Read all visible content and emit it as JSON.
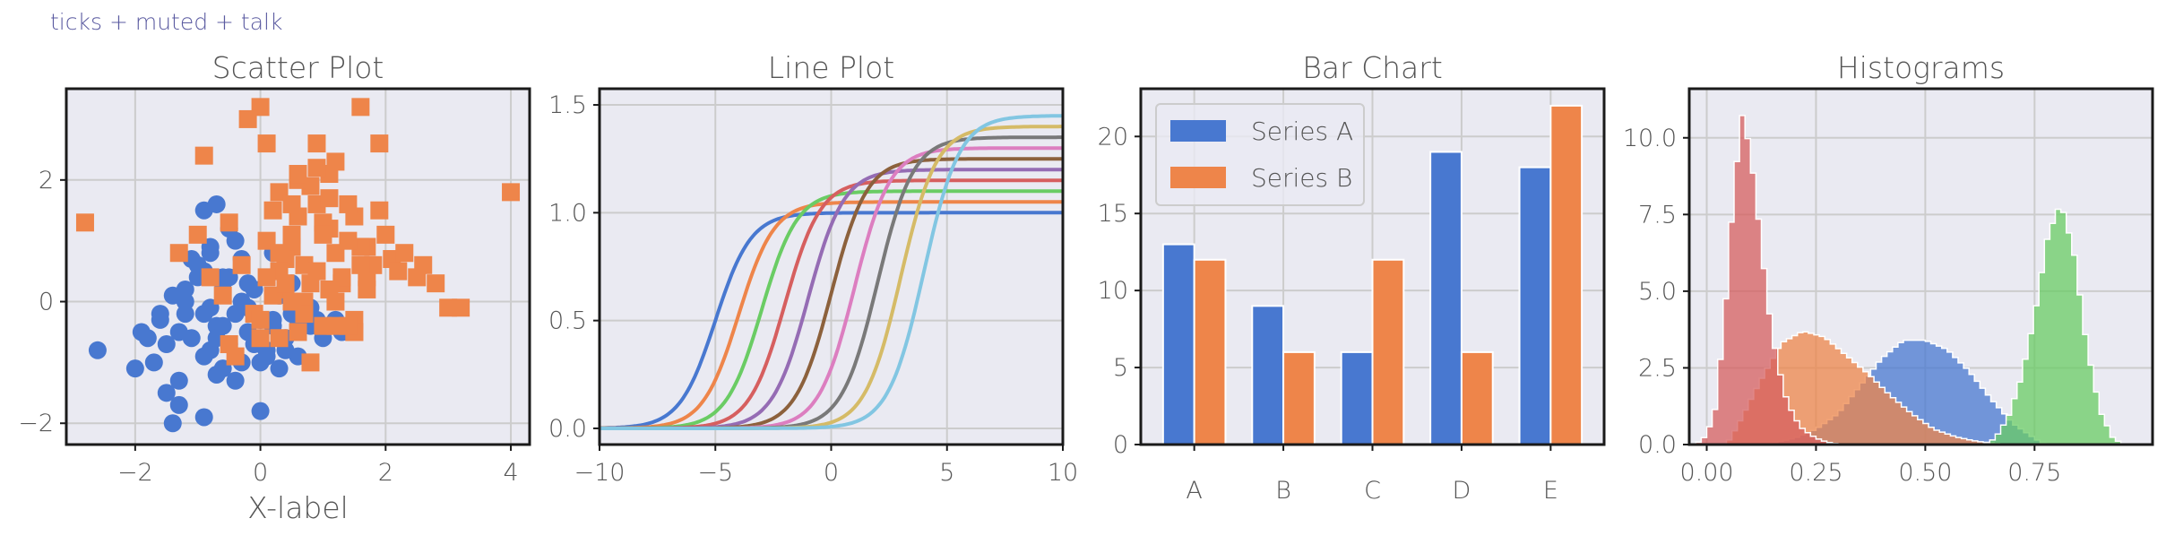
{
  "figure_title": "ticks + muted + talk",
  "colors": {
    "axes_bg": "#eaeaf2",
    "grid": "#cccccc",
    "spine": "#1a1a1a",
    "text": "#555555",
    "muted": [
      "#4878d0",
      "#ee854a",
      "#6acc64",
      "#d65f5f",
      "#956cb4",
      "#8c613c",
      "#dc7ec0",
      "#797979",
      "#d5bb67",
      "#82c6e2"
    ]
  },
  "chart_data": [
    {
      "type": "scatter",
      "title": "Scatter Plot",
      "xlabel": "X-label",
      "ylabel": "",
      "xlim": [
        -3.1,
        4.3
      ],
      "ylim": [
        -2.35,
        3.5
      ],
      "xticks": [
        -2,
        0,
        2,
        4
      ],
      "xtick_labels": [
        "−2",
        "0",
        "2",
        "4"
      ],
      "yticks": [
        -2,
        0,
        2
      ],
      "ytick_labels": [
        "−2",
        "0",
        "2"
      ],
      "grid": true,
      "series": [
        {
          "marker": "circle",
          "color": "#4878d0",
          "x": [
            -2.6,
            -2.0,
            -1.9,
            -1.6,
            -1.5,
            -1.4,
            -1.3,
            -1.2,
            -1.1,
            -1.0,
            -0.9,
            -0.8,
            -0.7,
            -0.6,
            -0.5,
            -0.4,
            -0.3,
            -0.2,
            -0.1,
            0.0,
            0.1,
            0.2,
            0.3,
            0.4,
            0.5,
            0.6,
            0.7,
            0.8,
            1.0,
            1.2,
            1.4,
            -1.8,
            -1.5,
            -1.2,
            -0.9,
            -0.6,
            -0.3,
            0.0,
            0.3,
            0.6,
            0.9,
            -1.7,
            -1.3,
            -0.8,
            -0.4,
            0.1,
            0.5,
            -1.0,
            -0.7,
            -0.2,
            0.2,
            -1.1,
            -0.5,
            0.4,
            -1.4,
            -0.9,
            0.0,
            -1.3,
            -1.2,
            -0.8,
            -0.3,
            0.2,
            1.3,
            0.8,
            -1.6,
            -0.6,
            -0.1,
            0.7,
            -0.9,
            -0.4,
            -0.9,
            -0.8,
            -0.6,
            0.0,
            -0.7,
            -0.5,
            -0.2,
            -0.7
          ],
          "y": [
            -0.8,
            -1.1,
            -0.5,
            -0.3,
            -0.7,
            0.1,
            -1.3,
            -0.2,
            -0.6,
            0.4,
            -0.9,
            -0.1,
            -0.4,
            0.3,
            -0.7,
            -0.2,
            -1.0,
            -0.5,
            0.2,
            -0.3,
            -0.8,
            -0.4,
            0.1,
            -0.6,
            -0.2,
            -0.9,
            0.0,
            -0.4,
            -0.6,
            -0.3,
            -0.5,
            -0.6,
            -1.5,
            0.2,
            -0.2,
            -1.1,
            0.0,
            -0.7,
            -1.1,
            -0.4,
            -0.3,
            -1.0,
            -0.5,
            -0.8,
            -1.3,
            -0.9,
            0.3,
            0.6,
            -0.6,
            -0.1,
            -0.3,
            0.7,
            0.4,
            -0.8,
            -2.0,
            -1.9,
            -1.8,
            -1.7,
            0.0,
            0.9,
            0.7,
            0.8,
            -0.5,
            -0.1,
            -0.2,
            -0.4,
            -0.7,
            -0.2,
            1.5,
            1.0,
            0.5,
            0.8,
            0.4,
            -1.0,
            1.6,
            1.2,
            0.3,
            -1.2
          ]
        },
        {
          "marker": "square",
          "color": "#ee854a",
          "x": [
            -2.8,
            4.0,
            0.0,
            1.6,
            -1.3,
            -0.9,
            -0.5,
            -0.2,
            0.1,
            0.3,
            0.5,
            0.7,
            0.9,
            1.1,
            1.3,
            1.5,
            1.7,
            1.9,
            2.1,
            2.3,
            2.5,
            2.8,
            3.2,
            1.0,
            0.4,
            -0.1,
            -0.6,
            0.6,
            0.9,
            1.2,
            1.5,
            1.8,
            0.2,
            0.5,
            0.8,
            1.1,
            1.4,
            1.7,
            2.0,
            0.0,
            0.3,
            0.6,
            0.9,
            1.2,
            1.5,
            0.1,
            0.4,
            0.7,
            1.0,
            1.3,
            1.6,
            -0.3,
            0.2,
            0.5,
            0.8,
            1.1,
            1.4,
            1.7,
            0.6,
            0.9,
            1.2,
            2.6,
            3.0,
            1.5,
            0.3,
            0.7,
            1.1,
            1.9,
            -0.8,
            0.0,
            0.4,
            0.8,
            1.2,
            1.6,
            2.2,
            0.5,
            1.0,
            -0.4,
            0.1,
            -1.0,
            0.3,
            0.6,
            1.4,
            -0.5
          ],
          "y": [
            1.3,
            1.8,
            3.2,
            3.2,
            0.8,
            2.4,
            1.3,
            3.0,
            2.6,
            1.8,
            1.1,
            0.6,
            1.6,
            2.1,
            0.3,
            1.4,
            0.9,
            2.6,
            0.7,
            0.8,
            0.4,
            0.3,
            -0.1,
            -0.4,
            0.2,
            -0.2,
            0.1,
            -0.5,
            0.5,
            0.0,
            -0.3,
            0.6,
            1.5,
            0.9,
            1.9,
            1.2,
            1.6,
            0.4,
            1.1,
            -0.6,
            0.5,
            1.4,
            2.2,
            0.8,
            -0.5,
            1.0,
            0.7,
            0.0,
            1.3,
            0.4,
            0.9,
            0.6,
            0.1,
            1.6,
            0.3,
            1.7,
            1.0,
            0.2,
            2.0,
            2.6,
            -0.4,
            0.6,
            -0.1,
            -0.5,
            0.8,
            -0.2,
            0.2,
            1.5,
            0.4,
            -0.3,
            0.3,
            -1.0,
            2.3,
            0.6,
            0.5,
            0.0,
            1.1,
            -0.9,
            0.4,
            1.1,
            -0.6,
            2.1,
            -0.4,
            -0.7
          ]
        }
      ]
    },
    {
      "type": "line",
      "title": "Line Plot",
      "xlabel": "",
      "ylabel": "",
      "xlim": [
        -10,
        10
      ],
      "ylim": [
        -0.075,
        1.575
      ],
      "xticks": [
        -10,
        -5,
        0,
        5,
        10
      ],
      "xtick_labels": [
        "−10",
        "−5",
        "0",
        "5",
        "10"
      ],
      "yticks": [
        0.0,
        0.5,
        1.0,
        1.5
      ],
      "ytick_labels": [
        "0.0",
        "0.5",
        "1.0",
        "1.5"
      ],
      "grid": true,
      "curves": [
        {
          "color": "#4878d0",
          "shift": -5,
          "amplitude": 1.0
        },
        {
          "color": "#ee854a",
          "shift": -4,
          "amplitude": 1.05
        },
        {
          "color": "#6acc64",
          "shift": -3,
          "amplitude": 1.1
        },
        {
          "color": "#d65f5f",
          "shift": -2,
          "amplitude": 1.15
        },
        {
          "color": "#956cb4",
          "shift": -1,
          "amplitude": 1.2
        },
        {
          "color": "#8c613c",
          "shift": 0,
          "amplitude": 1.25
        },
        {
          "color": "#dc7ec0",
          "shift": 1,
          "amplitude": 1.3
        },
        {
          "color": "#797979",
          "shift": 2,
          "amplitude": 1.35
        },
        {
          "color": "#d5bb67",
          "shift": 3,
          "amplitude": 1.4
        },
        {
          "color": "#82c6e2",
          "shift": 4,
          "amplitude": 1.45
        }
      ]
    },
    {
      "type": "bar",
      "title": "Bar Chart",
      "xlabel": "",
      "ylabel": "",
      "categories": [
        "A",
        "B",
        "C",
        "D",
        "E"
      ],
      "ylim": [
        0,
        23.1
      ],
      "yticks": [
        0,
        5,
        10,
        15,
        20
      ],
      "ytick_labels": [
        "0",
        "5",
        "10",
        "15",
        "20"
      ],
      "grid": true,
      "legend": "top-left",
      "series": [
        {
          "name": "Series A",
          "color": "#4878d0",
          "values": [
            13,
            9,
            6,
            19,
            18
          ]
        },
        {
          "name": "Series B",
          "color": "#ee854a",
          "values": [
            12,
            6,
            12,
            6,
            22
          ]
        }
      ]
    },
    {
      "type": "histogram",
      "title": "Histograms",
      "xlabel": "",
      "ylabel": "",
      "xlim": [
        -0.04,
        1.02
      ],
      "ylim": [
        0,
        11.6
      ],
      "xticks": [
        0.0,
        0.25,
        0.5,
        0.75
      ],
      "xtick_labels": [
        "0.00",
        "0.25",
        "0.50",
        "0.75"
      ],
      "yticks": [
        0.0,
        2.5,
        5.0,
        7.5,
        10.0
      ],
      "ytick_labels": [
        "0.0",
        "2.5",
        "5.0",
        "7.5",
        "10.0"
      ],
      "grid": true,
      "series": [
        {
          "color": "#4878d0",
          "x": [
            0.15,
            0.2,
            0.25,
            0.3,
            0.35,
            0.4,
            0.45,
            0.5,
            0.55,
            0.6,
            0.65,
            0.7,
            0.75
          ],
          "density": [
            0.05,
            0.2,
            0.5,
            1.0,
            1.9,
            2.8,
            3.4,
            3.4,
            3.1,
            2.4,
            1.5,
            0.7,
            0.2
          ]
        },
        {
          "color": "#ee854a",
          "x": [
            0.07,
            0.12,
            0.17,
            0.22,
            0.27,
            0.32,
            0.37,
            0.42,
            0.47,
            0.52,
            0.57,
            0.62,
            0.67
          ],
          "density": [
            0.6,
            2.0,
            3.3,
            3.7,
            3.5,
            2.9,
            2.3,
            1.6,
            1.0,
            0.5,
            0.25,
            0.1,
            0.03
          ]
        },
        {
          "color": "#d65f5f",
          "x": [
            0.0,
            0.02,
            0.04,
            0.06,
            0.08,
            0.1,
            0.12,
            0.14,
            0.16,
            0.18,
            0.2,
            0.22,
            0.24,
            0.26,
            0.28,
            0.3
          ],
          "density": [
            0.3,
            1.2,
            4.0,
            8.0,
            10.8,
            9.6,
            7.2,
            4.6,
            2.8,
            1.6,
            0.9,
            0.5,
            0.3,
            0.15,
            0.07,
            0.02
          ]
        },
        {
          "color": "#6acc64",
          "x": [
            0.66,
            0.69,
            0.72,
            0.75,
            0.78,
            0.81,
            0.84,
            0.87,
            0.9,
            0.93
          ],
          "density": [
            0.2,
            0.9,
            2.2,
            4.2,
            6.8,
            7.9,
            6.3,
            3.2,
            1.1,
            0.2
          ]
        }
      ]
    }
  ],
  "legend_labels": [
    "Series A",
    "Series B"
  ]
}
